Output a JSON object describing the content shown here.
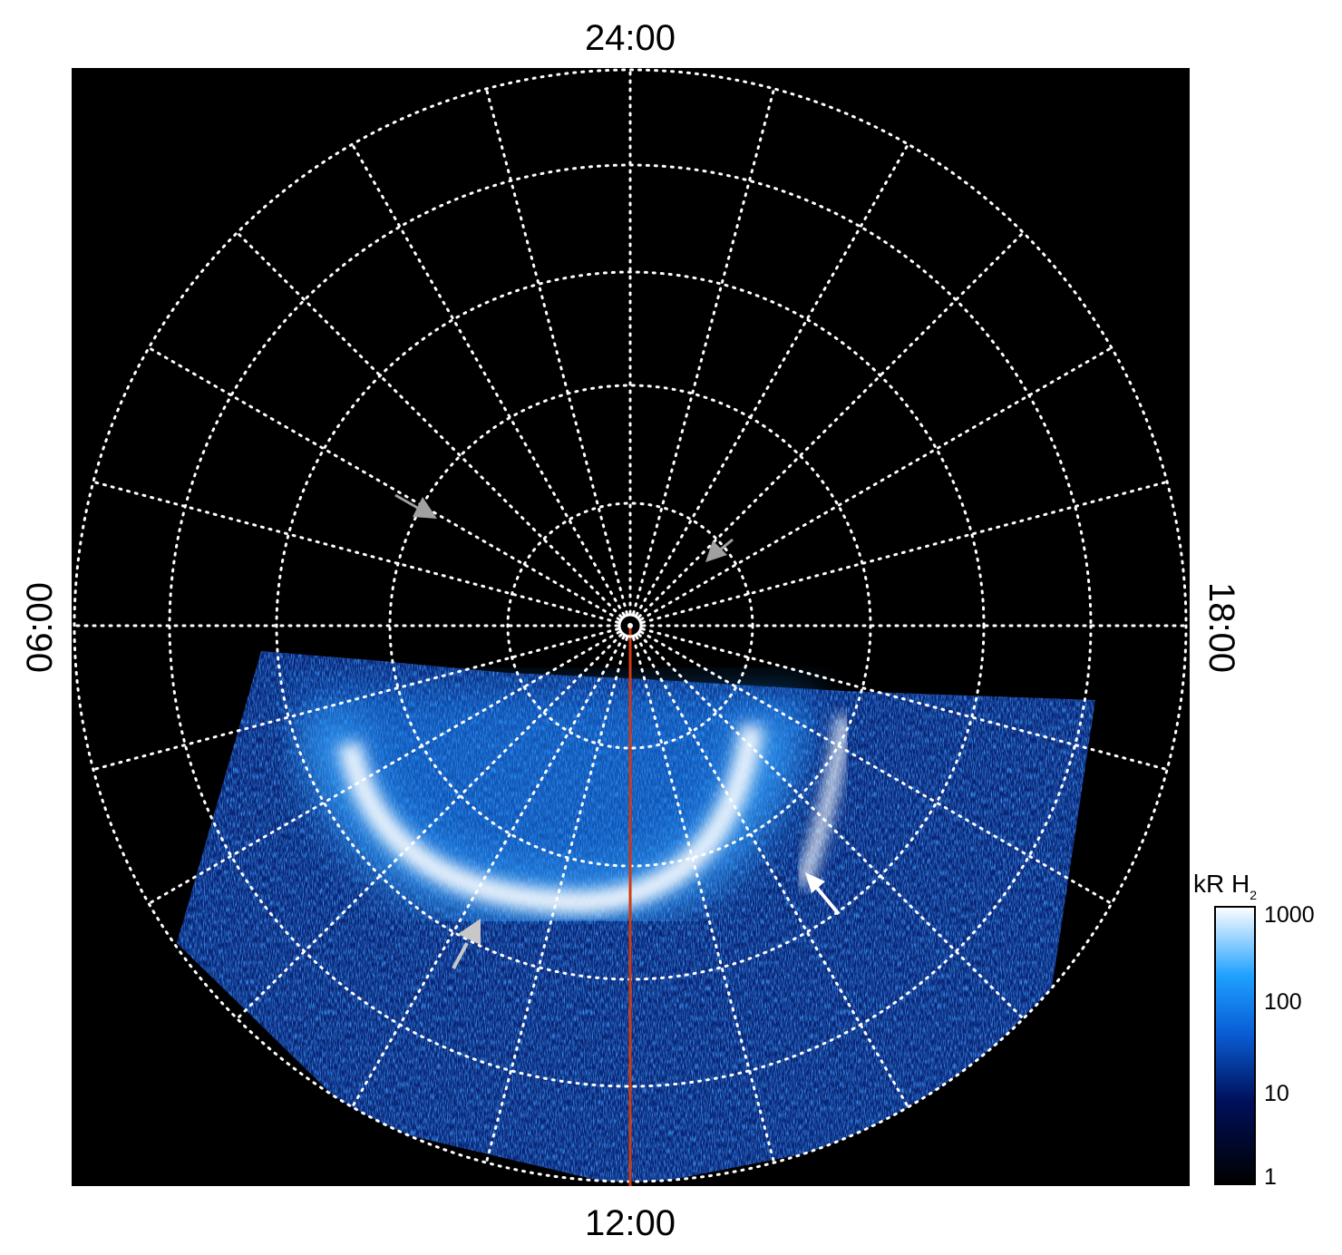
{
  "chart_data": {
    "type": "heatmap",
    "projection": "polar",
    "local_time_labels": {
      "top": "24:00",
      "left": "06:00",
      "bottom": "12:00",
      "right": "18:00"
    },
    "radial_line_spacing_hours": 1,
    "grid": "dotted",
    "colorbar": {
      "title": "kR H",
      "title_subscript": "2",
      "scale": "log",
      "range": [
        1,
        1000
      ],
      "ticks": [
        "1000",
        "100",
        "10",
        "1"
      ],
      "colors": [
        "#000000",
        "#00105a",
        "#0a5fd8",
        "#1ea0ff",
        "#ffffff"
      ]
    },
    "meridian_line_color": "#d03a10",
    "arrow_colors": {
      "gray": "#a0a0a0",
      "white": "#ffffff"
    }
  }
}
